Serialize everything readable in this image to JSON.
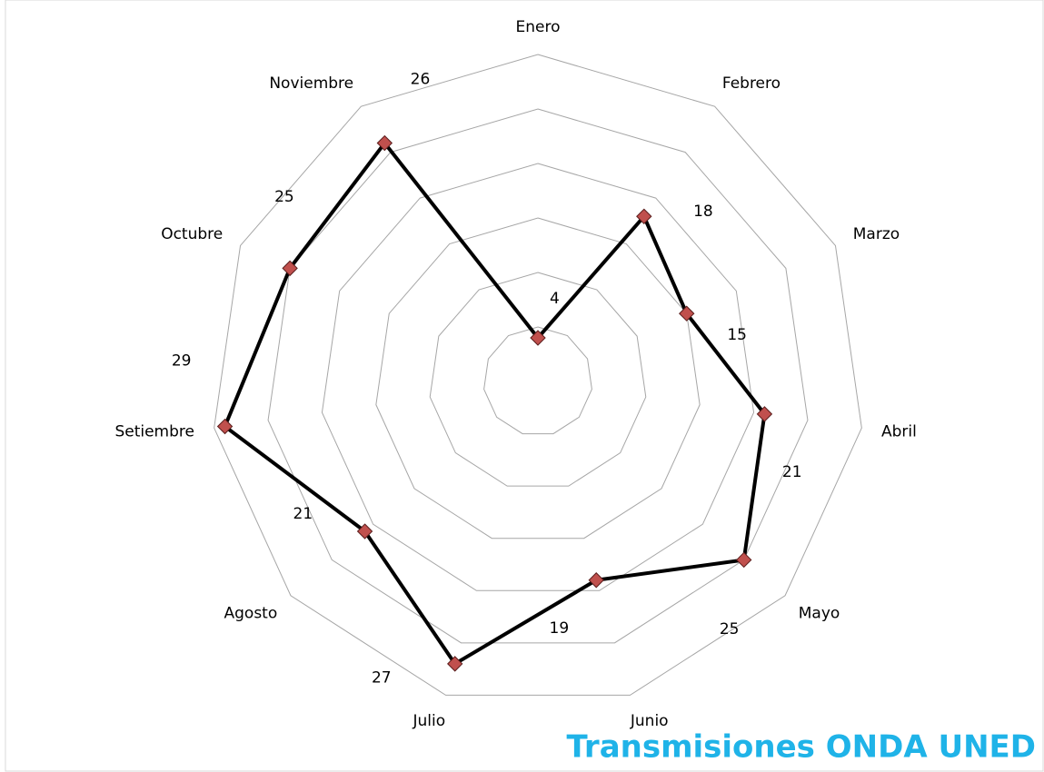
{
  "chart_data": {
    "type": "radar",
    "categories": [
      "Enero",
      "Febrero",
      "Marzo",
      "Abril",
      "Mayo",
      "Junio",
      "Julio",
      "Agosto",
      "Setiembre",
      "Octubre",
      "Noviembre"
    ],
    "series": [
      {
        "color": "#000000",
        "marker_color": "#c0504d",
        "values": [
          4,
          18,
          15,
          21,
          25,
          19,
          27,
          21,
          29,
          25,
          26
        ]
      }
    ],
    "ylim": [
      0,
      30
    ],
    "yticks": [
      5,
      10,
      15,
      20,
      25,
      30
    ],
    "grid": true
  },
  "watermark": "Transmisiones ONDA UNED"
}
